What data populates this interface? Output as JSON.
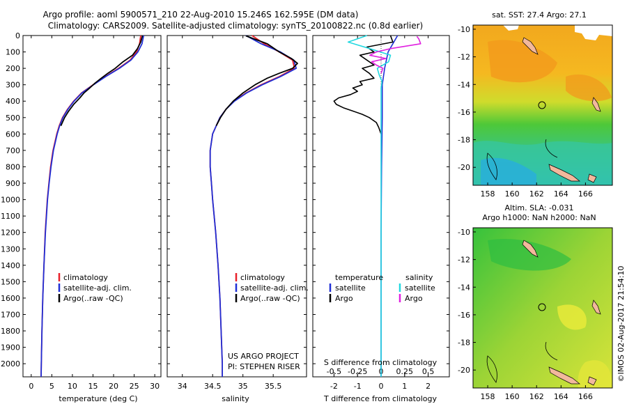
{
  "header": {
    "title_line1": "Argo profile: aoml 5900571_210 22-Aug-2010 15.246S 162.595E (DM data)",
    "title_line2": "Climatology: CARS2009. Satellite-adjusted climatology: synTS_20100822.nc (0.8d earlier)"
  },
  "colors": {
    "climatology": "#e8202a",
    "satellite": "#1f2fd6",
    "argo": "#000000",
    "salinity_satellite": "#22d8e0",
    "salinity_argo": "#e020e0"
  },
  "credits": {
    "project": "US ARGO PROJECT",
    "pi": "PI: STEPHEN RISER",
    "imos": "©IMOS 02-Aug-2017 21:54:10"
  },
  "chart_data": [
    {
      "type": "line",
      "id": "temperature",
      "xlabel": "temperature (deg C)",
      "ylabel": "",
      "xlim": [
        -2,
        31.5
      ],
      "ylim": [
        2080,
        0
      ],
      "xticks": [
        0,
        5,
        10,
        15,
        20,
        25,
        30
      ],
      "yticks": [
        0,
        100,
        200,
        300,
        400,
        500,
        600,
        700,
        800,
        900,
        1000,
        1100,
        1200,
        1300,
        1400,
        1500,
        1600,
        1700,
        1800,
        1900,
        2000
      ],
      "legend": [
        "climatology",
        "satellite-adj. clim.",
        "Argo(..raw -QC)"
      ],
      "series": [
        {
          "name": "climatology",
          "color": "#e8202a",
          "depth": [
            0,
            50,
            100,
            150,
            200,
            250,
            300,
            350,
            400,
            450,
            500,
            550,
            600,
            700,
            800,
            900,
            1000,
            1200,
            1400,
            1600,
            1800,
            2000,
            2080
          ],
          "values": [
            26.6,
            26.3,
            25.6,
            24.0,
            21.2,
            18.0,
            15.0,
            12.2,
            10.3,
            8.8,
            7.6,
            6.8,
            6.2,
            5.3,
            4.7,
            4.3,
            3.9,
            3.4,
            3.1,
            2.8,
            2.6,
            2.45,
            2.4
          ]
        },
        {
          "name": "satellite-adj. clim.",
          "color": "#1f2fd6",
          "depth": [
            0,
            50,
            100,
            150,
            200,
            250,
            300,
            350,
            400,
            450,
            500,
            550,
            600,
            700,
            800,
            900,
            1000,
            1200,
            1400,
            1600,
            1800,
            2000,
            2080
          ],
          "values": [
            27.3,
            26.9,
            25.9,
            24.2,
            21.4,
            18.1,
            15.1,
            12.3,
            10.4,
            8.9,
            7.7,
            6.9,
            6.3,
            5.4,
            4.8,
            4.35,
            3.95,
            3.45,
            3.1,
            2.8,
            2.6,
            2.45,
            2.4
          ]
        },
        {
          "name": "Argo(..raw -QC)",
          "color": "#000000",
          "depth": [
            2,
            40,
            80,
            120,
            160,
            200,
            230,
            260,
            290,
            320,
            350,
            380,
            420,
            460,
            500,
            550
          ],
          "values": [
            27.0,
            26.6,
            25.8,
            24.6,
            22.3,
            20.4,
            18.6,
            17.0,
            15.5,
            14.2,
            12.8,
            11.8,
            10.3,
            9.1,
            8.1,
            7.2
          ]
        }
      ]
    },
    {
      "type": "line",
      "id": "salinity",
      "xlabel": "salinity",
      "ylabel": "",
      "xlim": [
        33.75,
        36.05
      ],
      "ylim": [
        2080,
        0
      ],
      "xticks": [
        34,
        34.5,
        35,
        35.5
      ],
      "legend": [
        "climatology",
        "satellite-adj. clim.",
        "Argo(..raw -QC)"
      ],
      "series": [
        {
          "name": "climatology",
          "color": "#e8202a",
          "depth": [
            0,
            50,
            100,
            150,
            200,
            250,
            300,
            350,
            400,
            450,
            500,
            600,
            700,
            800,
            900,
            1000,
            1200,
            1400,
            1600,
            1800,
            2000,
            2080
          ],
          "values": [
            35.15,
            35.35,
            35.6,
            35.82,
            35.85,
            35.6,
            35.3,
            35.05,
            34.85,
            34.72,
            34.62,
            34.5,
            34.46,
            34.46,
            34.48,
            34.5,
            34.55,
            34.59,
            34.62,
            34.64,
            34.66,
            34.66
          ]
        },
        {
          "name": "satellite-adj. clim.",
          "color": "#1f2fd6",
          "depth": [
            0,
            50,
            100,
            150,
            200,
            250,
            300,
            350,
            400,
            450,
            500,
            600,
            700,
            800,
            900,
            1000,
            1200,
            1400,
            1600,
            1800,
            2000,
            2080
          ],
          "values": [
            35.05,
            35.3,
            35.62,
            35.84,
            35.88,
            35.62,
            35.32,
            35.06,
            34.86,
            34.72,
            34.62,
            34.5,
            34.46,
            34.46,
            34.48,
            34.5,
            34.55,
            34.59,
            34.62,
            34.64,
            34.66,
            34.66
          ]
        },
        {
          "name": "Argo(..raw -QC)",
          "color": "#000000",
          "depth": [
            2,
            50,
            100,
            140,
            170,
            200,
            230,
            260,
            300,
            350,
            400,
            450,
            500,
            550
          ],
          "values": [
            35.05,
            35.4,
            35.6,
            35.8,
            35.9,
            35.82,
            35.6,
            35.4,
            35.2,
            35.0,
            34.84,
            34.72,
            34.63,
            34.56
          ]
        }
      ]
    },
    {
      "type": "line",
      "id": "differences",
      "xlabel": "T difference from climatology",
      "secondary_xlabel": "S difference from climatology",
      "xlim": [
        -2.9,
        2.9
      ],
      "ylim": [
        2080,
        0
      ],
      "xticks": [
        -2,
        -1,
        0,
        1,
        2
      ],
      "secondary_xticks": [
        -0.5,
        -0.25,
        0,
        0.25,
        0.5
      ],
      "legend_temperature_header": "temperature",
      "legend_salinity_header": "salinity",
      "legend_temperature": [
        "satellite",
        "Argo"
      ],
      "legend_salinity": [
        "satellite",
        "Argo"
      ],
      "series": [
        {
          "name": "temperature satellite",
          "color": "#1f2fd6",
          "depth": [
            0,
            50,
            100,
            200,
            300,
            500,
            800,
            1200,
            1600,
            2080
          ],
          "values": [
            0.7,
            0.5,
            0.3,
            0.15,
            0.05,
            0.05,
            0.02,
            0.0,
            0.0,
            0.0
          ]
        },
        {
          "name": "temperature Argo",
          "color": "#000000",
          "depth": [
            0,
            40,
            70,
            100,
            120,
            150,
            180,
            200,
            230,
            260,
            280,
            300,
            320,
            340,
            360,
            380,
            400,
            420,
            440,
            460,
            480,
            500,
            530,
            560,
            600
          ],
          "values": [
            0.4,
            0.5,
            -0.6,
            -0.3,
            -0.9,
            -0.6,
            -0.3,
            -0.8,
            -0.5,
            -0.3,
            -0.9,
            -0.8,
            -1.2,
            -1.0,
            -1.3,
            -1.8,
            -2.0,
            -1.9,
            -1.6,
            -1.2,
            -0.8,
            -0.5,
            -0.2,
            -0.1,
            0.0
          ]
        },
        {
          "name": "salinity satellite",
          "color": "#22d8e0",
          "depth": [
            0,
            40,
            80,
            120,
            160,
            200,
            240,
            280,
            320,
            360,
            400,
            500,
            700,
            1000,
            1500,
            2080
          ],
          "values": [
            -0.15,
            -0.35,
            -0.12,
            0.1,
            0.08,
            -0.04,
            -0.02,
            0.01,
            0.0,
            0.0,
            0.0,
            0.0,
            0.0,
            0.0,
            0.0,
            0.0
          ]
        },
        {
          "name": "salinity Argo",
          "color": "#e020e0",
          "depth": [
            5,
            20,
            50,
            80,
            100,
            120,
            140,
            160,
            180,
            200,
            230
          ],
          "values": [
            0.38,
            0.4,
            0.42,
            0.1,
            -0.05,
            -0.12,
            0.05,
            -0.1,
            -0.05,
            0.02,
            0.0
          ]
        }
      ]
    },
    {
      "type": "heatmap",
      "id": "sst_map",
      "title": "sat. SST: 27.4 Argo: 27.1",
      "xticks": [
        158,
        160,
        162,
        164,
        166
      ],
      "yticks": [
        -10,
        -12,
        -14,
        -16,
        -18,
        -20
      ],
      "xlim": [
        156.8,
        168.2
      ],
      "ylim": [
        -21.3,
        -9.7
      ],
      "marker": {
        "lon": 162.6,
        "lat": -15.25
      }
    },
    {
      "type": "heatmap",
      "id": "sla_map",
      "title_line1": "Altim. SLA: -0.031",
      "title_line2": "Argo h1000: NaN h2000: NaN",
      "xticks": [
        158,
        160,
        162,
        164,
        166
      ],
      "yticks": [
        -10,
        -12,
        -14,
        -16,
        -18,
        -20
      ],
      "xlim": [
        156.8,
        168.2
      ],
      "ylim": [
        -21.3,
        -9.7
      ],
      "marker": {
        "lon": 162.6,
        "lat": -15.25
      }
    }
  ]
}
